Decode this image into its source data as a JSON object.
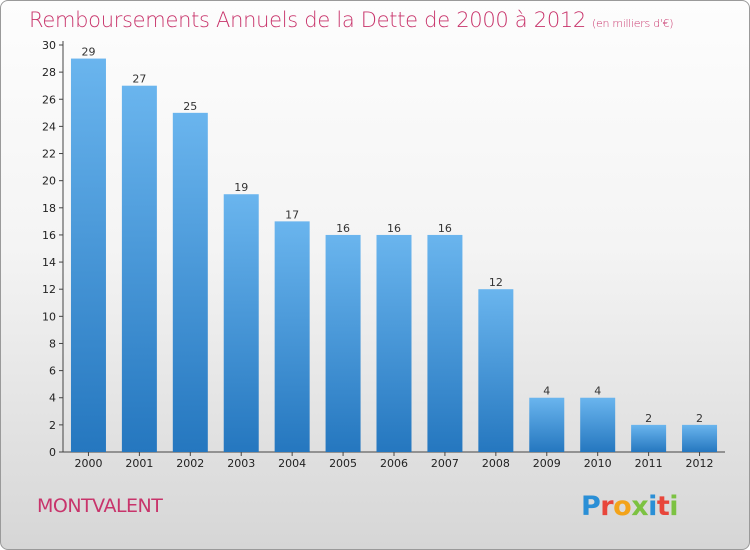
{
  "header": {
    "title": "Remboursements Annuels de la Dette de 2000 à 2012",
    "subtitle": "(en milliers d'€)"
  },
  "footer": {
    "city": "MONTVALENT",
    "logo_text": "Proxiti",
    "logo_colors": [
      "#2a8fd6",
      "#e8463b",
      "#f3a31a",
      "#7cc242",
      "#2a8fd6",
      "#e8463b",
      "#7cc242"
    ]
  },
  "colors": {
    "bar_light": "#6ab5ee",
    "bar_dark": "#2577bf",
    "title": "#c8346b"
  },
  "chart_data": {
    "type": "bar",
    "title": "Remboursements Annuels de la Dette de 2000 à 2012",
    "subtitle": "(en milliers d'€)",
    "xlabel": "",
    "ylabel": "",
    "categories": [
      "2000",
      "2001",
      "2002",
      "2003",
      "2004",
      "2005",
      "2006",
      "2007",
      "2008",
      "2009",
      "2010",
      "2011",
      "2012"
    ],
    "values": [
      29,
      27,
      25,
      19,
      17,
      16,
      16,
      16,
      12,
      4,
      4,
      2,
      2
    ],
    "ylim": [
      0,
      30
    ],
    "yticks": [
      0,
      2,
      4,
      6,
      8,
      10,
      12,
      14,
      16,
      18,
      20,
      22,
      24,
      26,
      28,
      30
    ],
    "grid": false,
    "legend": "none",
    "data_labels": true
  }
}
